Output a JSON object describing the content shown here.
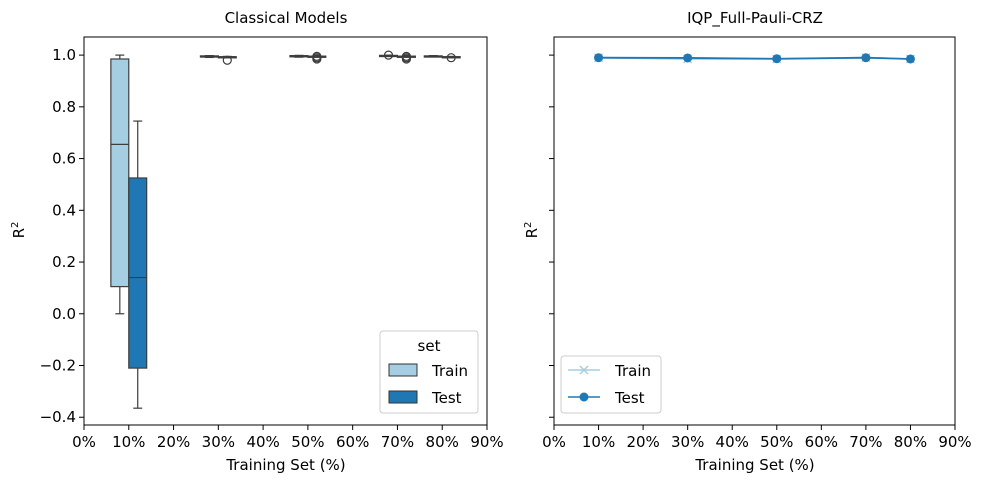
{
  "chart_data": [
    {
      "type": "box",
      "title": "Classical Models",
      "xlabel": "Training Set (%)",
      "ylabel": "R",
      "ylabel_sup": "2",
      "xlim": [
        0,
        90
      ],
      "ylim": [
        -0.43,
        1.07
      ],
      "xticks": [
        0,
        10,
        20,
        30,
        40,
        50,
        60,
        70,
        80,
        90
      ],
      "xtick_labels": [
        "0%",
        "10%",
        "20%",
        "30%",
        "40%",
        "50%",
        "60%",
        "70%",
        "80%",
        "90%"
      ],
      "yticks": [
        -0.4,
        -0.2,
        0.0,
        0.2,
        0.4,
        0.6,
        0.8,
        1.0
      ],
      "ytick_labels": [
        "−0.4",
        "−0.2",
        "0.0",
        "0.2",
        "0.4",
        "0.6",
        "0.8",
        "1.0"
      ],
      "legend": {
        "title": "set",
        "location": "lower right"
      },
      "series": [
        {
          "name": "Train",
          "color": "#a6cee3",
          "boxes": [
            {
              "x": 10,
              "whislo": 0.0,
              "q1": 0.105,
              "med": 0.655,
              "q3": 0.985,
              "whishi": 1.0,
              "fliers": []
            },
            {
              "x": 30,
              "whislo": 0.991,
              "q1": 0.993,
              "med": 0.995,
              "q3": 0.997,
              "whishi": 0.998,
              "fliers": []
            },
            {
              "x": 50,
              "whislo": 0.992,
              "q1": 0.994,
              "med": 0.996,
              "q3": 0.998,
              "whishi": 0.999,
              "fliers": []
            },
            {
              "x": 70,
              "whislo": 0.996,
              "q1": 0.997,
              "med": 0.998,
              "q3": 0.999,
              "whishi": 1.0,
              "fliers": [
                1.0
              ]
            },
            {
              "x": 80,
              "whislo": 0.994,
              "q1": 0.995,
              "med": 0.996,
              "q3": 0.997,
              "whishi": 0.998,
              "fliers": []
            }
          ]
        },
        {
          "name": "Test",
          "color": "#1f78b4",
          "boxes": [
            {
              "x": 10,
              "whislo": -0.365,
              "q1": -0.21,
              "med": 0.14,
              "q3": 0.525,
              "whishi": 0.745,
              "fliers": []
            },
            {
              "x": 30,
              "whislo": 0.991,
              "q1": 0.992,
              "med": 0.993,
              "q3": 0.994,
              "whishi": 0.995,
              "fliers": [
                0.98
              ]
            },
            {
              "x": 50,
              "whislo": 0.993,
              "q1": 0.994,
              "med": 0.995,
              "q3": 0.996,
              "whishi": 0.997,
              "fliers": [
                0.985,
                0.99,
                0.995
              ]
            },
            {
              "x": 70,
              "whislo": 0.993,
              "q1": 0.994,
              "med": 0.995,
              "q3": 0.996,
              "whishi": 0.997,
              "fliers": [
                0.985,
                0.99,
                0.995
              ]
            },
            {
              "x": 80,
              "whislo": 0.991,
              "q1": 0.992,
              "med": 0.993,
              "q3": 0.994,
              "whishi": 0.995,
              "fliers": [
                0.99
              ]
            }
          ]
        }
      ]
    },
    {
      "type": "line",
      "title": "IQP_Full-Pauli-CRZ",
      "xlabel": "Training Set (%)",
      "ylabel": "R",
      "ylabel_sup": "2",
      "xlim": [
        0,
        90
      ],
      "ylim": [
        -0.43,
        1.07
      ],
      "xticks": [
        0,
        10,
        20,
        30,
        40,
        50,
        60,
        70,
        80,
        90
      ],
      "xtick_labels": [
        "0%",
        "10%",
        "20%",
        "30%",
        "40%",
        "50%",
        "60%",
        "70%",
        "80%",
        "90%"
      ],
      "yticks": [
        -0.4,
        -0.2,
        0.0,
        0.2,
        0.4,
        0.6,
        0.8,
        1.0
      ],
      "legend": {
        "location": "lower left"
      },
      "x": [
        10,
        30,
        50,
        70,
        80
      ],
      "series": [
        {
          "name": "Train",
          "color": "#a6cee3",
          "marker": "x",
          "values": [
            0.99,
            0.985,
            0.985,
            0.99,
            0.985
          ]
        },
        {
          "name": "Test",
          "color": "#1f78b4",
          "marker": "o",
          "values": [
            0.99,
            0.989,
            0.986,
            0.99,
            0.985
          ]
        }
      ]
    }
  ]
}
